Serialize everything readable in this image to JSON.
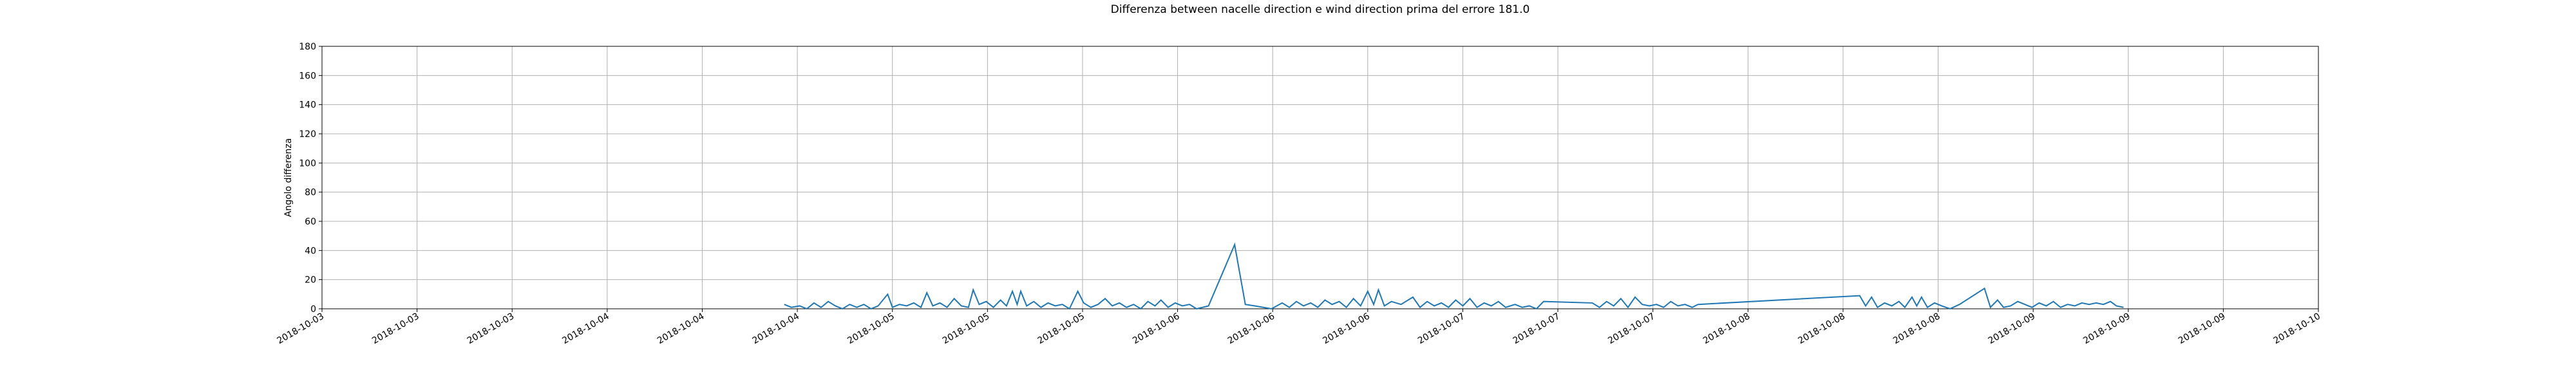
{
  "chart_data": {
    "type": "line",
    "title": "Differenza between nacelle direction e wind direction prima del errore 181.0",
    "y_label": "Angolo differenza",
    "color": "#1f77b4",
    "grid": true,
    "xlim": [
      0,
      168
    ],
    "ylim": [
      0,
      180
    ],
    "yticks": [
      0,
      20,
      40,
      60,
      80,
      100,
      120,
      140,
      160,
      180
    ],
    "xticks": [
      {
        "value": 0,
        "label": "2018-10-03"
      },
      {
        "value": 8,
        "label": "2018-10-03"
      },
      {
        "value": 16,
        "label": "2018-10-03"
      },
      {
        "value": 24,
        "label": "2018-10-04"
      },
      {
        "value": 32,
        "label": "2018-10-04"
      },
      {
        "value": 40,
        "label": "2018-10-04"
      },
      {
        "value": 48,
        "label": "2018-10-05"
      },
      {
        "value": 56,
        "label": "2018-10-05"
      },
      {
        "value": 64,
        "label": "2018-10-05"
      },
      {
        "value": 72,
        "label": "2018-10-06"
      },
      {
        "value": 80,
        "label": "2018-10-06"
      },
      {
        "value": 88,
        "label": "2018-10-06"
      },
      {
        "value": 96,
        "label": "2018-10-07"
      },
      {
        "value": 104,
        "label": "2018-10-07"
      },
      {
        "value": 112,
        "label": "2018-10-07"
      },
      {
        "value": 120,
        "label": "2018-10-08"
      },
      {
        "value": 128,
        "label": "2018-10-08"
      },
      {
        "value": 136,
        "label": "2018-10-08"
      },
      {
        "value": 144,
        "label": "2018-10-09"
      },
      {
        "value": 152,
        "label": "2018-10-09"
      },
      {
        "value": 160,
        "label": "2018-10-09"
      },
      {
        "value": 168,
        "label": "2018-10-10"
      }
    ],
    "x": [
      38.9,
      39.5,
      40.2,
      40.8,
      41.4,
      42.0,
      42.6,
      43.2,
      43.8,
      44.4,
      45.0,
      45.6,
      46.2,
      46.8,
      47.6,
      48.0,
      48.6,
      49.2,
      49.8,
      50.4,
      50.9,
      51.4,
      52.0,
      52.6,
      53.2,
      53.8,
      54.4,
      54.8,
      55.3,
      55.9,
      56.5,
      57.1,
      57.6,
      58.1,
      58.5,
      58.8,
      59.3,
      59.9,
      60.5,
      61.1,
      61.7,
      62.3,
      62.9,
      63.6,
      64.1,
      64.7,
      65.3,
      65.9,
      66.5,
      67.1,
      67.7,
      68.3,
      68.9,
      69.5,
      70.1,
      70.6,
      71.2,
      71.8,
      72.4,
      73.0,
      73.6,
      74.6,
      76.8,
      77.7,
      78.5,
      79.9,
      80.8,
      81.4,
      82.0,
      82.6,
      83.2,
      83.8,
      84.4,
      85.0,
      85.6,
      86.2,
      86.8,
      87.4,
      88.0,
      88.5,
      88.9,
      89.4,
      90.0,
      90.8,
      91.8,
      92.4,
      93.0,
      93.6,
      94.2,
      94.8,
      95.4,
      96.0,
      96.6,
      97.2,
      97.8,
      98.4,
      99.0,
      99.6,
      100.4,
      101.0,
      101.6,
      102.2,
      102.8,
      106.9,
      107.5,
      108.1,
      108.7,
      109.3,
      109.9,
      110.5,
      111.1,
      111.7,
      112.3,
      112.9,
      113.5,
      114.1,
      114.7,
      115.3,
      115.8,
      129.4,
      129.9,
      130.4,
      130.9,
      131.5,
      132.1,
      132.7,
      133.2,
      133.8,
      134.2,
      134.6,
      135.1,
      135.7,
      136.3,
      137.0,
      137.8,
      139.9,
      140.4,
      141.0,
      141.5,
      142.1,
      142.7,
      143.3,
      143.9,
      144.5,
      145.1,
      145.7,
      146.3,
      146.9,
      147.5,
      148.1,
      148.7,
      149.3,
      149.9,
      150.5,
      151.0,
      151.6
    ],
    "values": [
      3,
      1,
      2,
      0,
      4,
      1,
      5,
      2,
      0,
      3,
      1,
      3,
      0,
      2,
      10,
      1,
      3,
      2,
      4,
      1,
      11,
      2,
      4,
      1,
      7,
      2,
      1,
      13,
      3,
      5,
      1,
      6,
      2,
      12,
      3,
      12,
      2,
      5,
      1,
      4,
      2,
      3,
      0,
      12,
      4,
      1,
      3,
      7,
      2,
      4,
      1,
      3,
      0,
      5,
      2,
      6,
      1,
      4,
      2,
      3,
      0,
      2,
      44,
      3,
      2,
      0,
      4,
      1,
      5,
      2,
      4,
      1,
      6,
      3,
      5,
      1,
      7,
      2,
      12,
      3,
      13,
      2,
      5,
      3,
      8,
      1,
      5,
      2,
      4,
      1,
      6,
      2,
      7,
      1,
      4,
      2,
      5,
      1,
      3,
      1,
      2,
      0,
      5,
      4,
      1,
      5,
      2,
      7,
      1,
      8,
      3,
      2,
      3,
      1,
      5,
      2,
      3,
      1,
      3,
      9,
      2,
      8,
      1,
      4,
      2,
      5,
      1,
      8,
      2,
      8,
      1,
      4,
      2,
      0,
      3,
      14,
      1,
      6,
      1,
      2,
      5,
      3,
      1,
      4,
      2,
      5,
      1,
      3,
      2,
      4,
      3,
      4,
      3,
      5,
      2,
      1
    ]
  }
}
